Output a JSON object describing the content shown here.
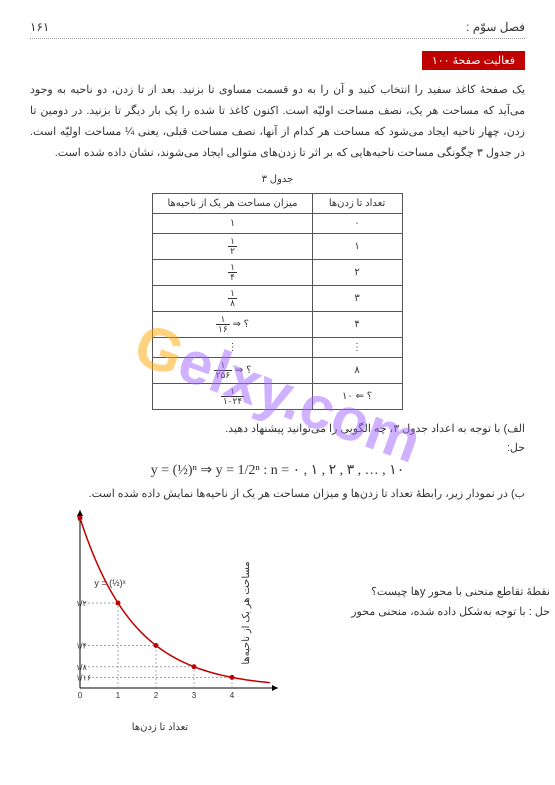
{
  "header": {
    "chapter": "فصل سوّم :",
    "page": "۱۶۱"
  },
  "activity": {
    "label": "فعالیت صفحهٔ ۱۰۰"
  },
  "paragraph": "یک صفحهٔ کاغذ سفید را انتخاب کنید و آن را به دو قسمت مساوی تا بزنید. بعد از تا زدن، دو ناحیه به وجود می‌آید که مساحت هر یک، نصف مساحت اولیّه است. اکنون کاغذ تا شده را یک بار دیگر تا بزنید. در دومین تا زدن، چهار ناحیه ایجاد می‌شود که مساحت هر کدام از آنها، نصف مساحت قبلی، یعنی ¼ مساحت اولیّه است. در جدول ۳ چگونگی مساحت ناحیه‌هایی که بر اثر تا زدن‌های متوالی ایجاد می‌شوند، نشان داده شده است.",
  "table": {
    "title": "جدول ۳",
    "head": {
      "c1": "تعداد تا زدن‌ها",
      "c2": "میزان مساحت هر یک از ناحیه‌ها"
    },
    "rows": [
      {
        "n": "۰",
        "a": "۱"
      },
      {
        "n": "۱",
        "a_num": "۱",
        "a_den": "۲"
      },
      {
        "n": "۲",
        "a_num": "۱",
        "a_den": "۴"
      },
      {
        "n": "۳",
        "a_num": "۱",
        "a_den": "۸"
      },
      {
        "n": "۴",
        "a_pre": "؟ ⇒",
        "a_num": "۱",
        "a_den": "۱۶"
      },
      {
        "n": "⋮",
        "a": "⋮"
      },
      {
        "n": "۸",
        "a_pre": "؟ ⇒",
        "a_num": "۱",
        "a_den": "۲۵۶"
      },
      {
        "n": "؟ ⇐ ۱۰",
        "a_num": "۱",
        "a_den": "۱۰۲۴"
      }
    ]
  },
  "alef": {
    "q": "الف) با توجه به اعداد جدول ۳، چه الگویی را می‌توانید پیشنهاد دهید.",
    "ans": "حل:"
  },
  "formula": "y = (½)ⁿ  ⇒  y = 1/2ⁿ   :   n = ۰ , ۱ , ۲ , ۳ , … , ۱۰",
  "beh": "ب) در نمودار زیر، رابطهٔ تعداد تا زدن‌ها و میزان مساحت هر یک از ناحیه‌ها نمایش داده شده است.",
  "chart": {
    "ylabel": "مساحت هر یک از ناحیه‌ها",
    "xlabel": "تعداد تا زدن‌ها",
    "curve_label": "y = (½)ˣ",
    "xlim": [
      0,
      5
    ],
    "ylim": [
      0,
      1
    ],
    "points": [
      {
        "x": 0,
        "y": 1
      },
      {
        "x": 1,
        "y": 0.5
      },
      {
        "x": 2,
        "y": 0.25
      },
      {
        "x": 3,
        "y": 0.125
      },
      {
        "x": 4,
        "y": 0.0625
      }
    ],
    "axis_color": "#000000",
    "curve_color": "#c00000",
    "point_color": "#c00000",
    "dash_color": "#888888",
    "yticks": [
      "۱",
      "۱/۲",
      "۱/۴",
      "۱/۸",
      "۱/۱۶"
    ]
  },
  "question": {
    "q": "نقطهٔ تقاطع منحنی با محور yها چیست؟",
    "a": "حل : با توجه به‌شکل داده شده، منحنی محور"
  },
  "watermark": {
    "text": "Gelxy.com"
  }
}
